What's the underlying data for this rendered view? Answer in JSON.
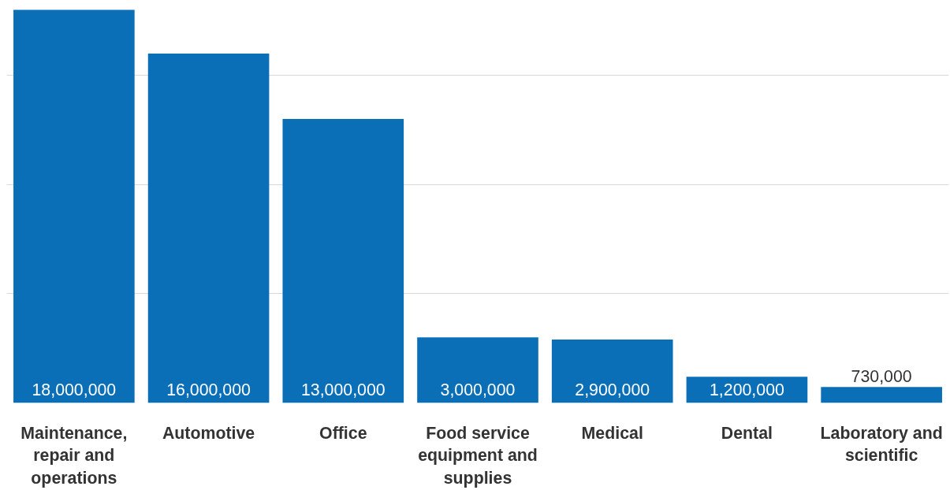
{
  "chart_data": {
    "type": "bar",
    "categories": [
      "Maintenance, repair and operations",
      "Automotive",
      "Office",
      "Food service equipment and supplies",
      "Medical",
      "Dental",
      "Laboratory and scientific"
    ],
    "values": [
      18000000,
      16000000,
      13000000,
      3000000,
      2900000,
      1200000,
      730000
    ],
    "color": "#0b6fb8",
    "value_labels": [
      "18,000,000",
      "16,000,000",
      "13,000,000",
      "3,000,000",
      "2,900,000",
      "1,200,000",
      "730,000"
    ],
    "grid": "y",
    "tick_labels": "x"
  }
}
